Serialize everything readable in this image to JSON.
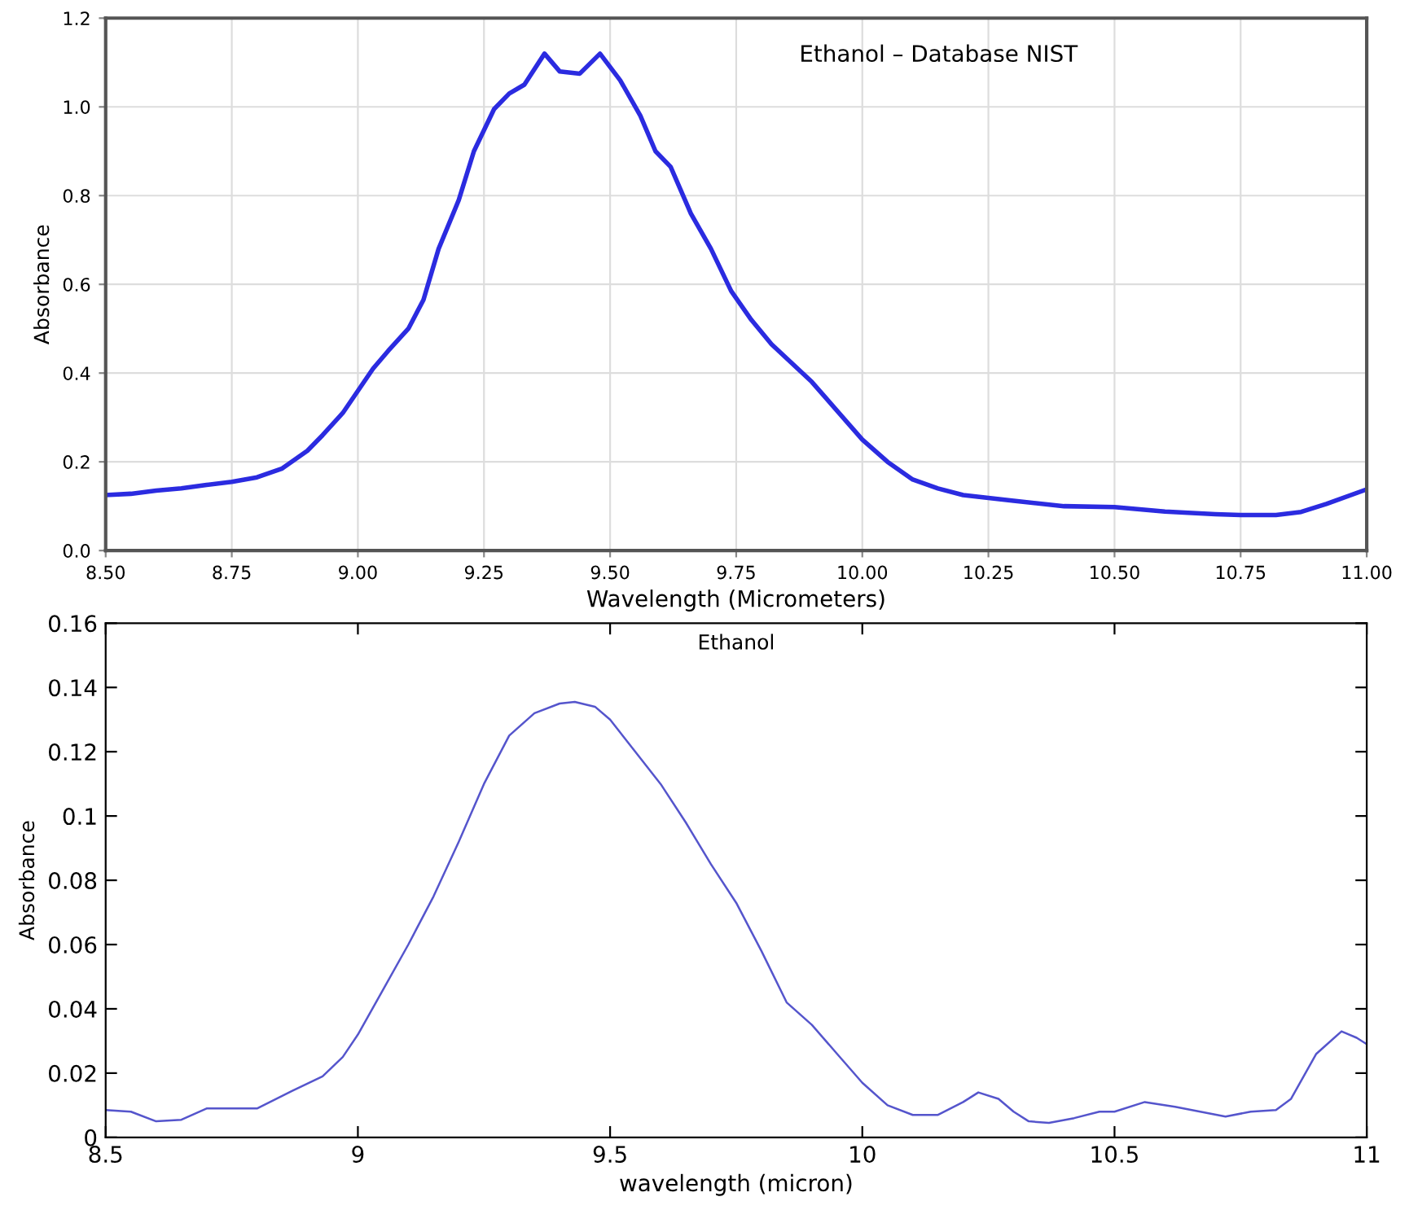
{
  "chart_data": [
    {
      "type": "line",
      "title": "Ethanol – Database NIST",
      "xlabel": "Wavelength (Micrometers)",
      "ylabel": "Absorbance",
      "series": [
        {
          "color": "#2b2be0",
          "x": [
            8.5,
            8.55,
            8.6,
            8.65,
            8.7,
            8.75,
            8.8,
            8.85,
            8.9,
            8.93,
            8.97,
            9.0,
            9.03,
            9.06,
            9.1,
            9.13,
            9.16,
            9.2,
            9.23,
            9.27,
            9.3,
            9.33,
            9.37,
            9.4,
            9.44,
            9.48,
            9.52,
            9.56,
            9.59,
            9.62,
            9.66,
            9.7,
            9.74,
            9.78,
            9.82,
            9.9,
            10.0,
            10.05,
            10.1,
            10.15,
            10.2,
            10.3,
            10.4,
            10.5,
            10.6,
            10.7,
            10.75,
            10.82,
            10.87,
            10.92,
            11.0
          ],
          "values": [
            0.125,
            0.128,
            0.135,
            0.14,
            0.148,
            0.155,
            0.165,
            0.185,
            0.225,
            0.26,
            0.31,
            0.36,
            0.41,
            0.45,
            0.5,
            0.565,
            0.68,
            0.79,
            0.9,
            0.995,
            1.03,
            1.05,
            1.12,
            1.08,
            1.075,
            1.12,
            1.06,
            0.98,
            0.9,
            0.865,
            0.76,
            0.68,
            0.585,
            0.52,
            0.465,
            0.38,
            0.25,
            0.2,
            0.16,
            0.14,
            0.125,
            0.112,
            0.1,
            0.098,
            0.088,
            0.082,
            0.08,
            0.08,
            0.087,
            0.105,
            0.138
          ]
        }
      ],
      "xlim": [
        8.5,
        11.0
      ],
      "ylim": [
        0.0,
        1.2
      ],
      "xticks": [
        {
          "value": 8.5,
          "label": "8.50"
        },
        {
          "value": 8.75,
          "label": "8.75"
        },
        {
          "value": 9.0,
          "label": "9.00"
        },
        {
          "value": 9.25,
          "label": "9.25"
        },
        {
          "value": 9.5,
          "label": "9.50"
        },
        {
          "value": 9.75,
          "label": "9.75"
        },
        {
          "value": 10.0,
          "label": "10.00"
        },
        {
          "value": 10.25,
          "label": "10.25"
        },
        {
          "value": 10.5,
          "label": "10.50"
        },
        {
          "value": 10.75,
          "label": "10.75"
        },
        {
          "value": 11.0,
          "label": "11.00"
        }
      ],
      "yticks": [
        {
          "value": 0,
          "label": "0.0"
        },
        {
          "value": 0.2,
          "label": "0.2"
        },
        {
          "value": 0.4,
          "label": "0.4"
        },
        {
          "value": 0.6,
          "label": "0.6"
        },
        {
          "value": 0.8,
          "label": "0.8"
        },
        {
          "value": 1.0,
          "label": "1.0"
        },
        {
          "value": 1.2,
          "label": "1.2"
        }
      ],
      "grid": true,
      "line_style": "solid"
    },
    {
      "type": "line",
      "title": "Ethanol",
      "xlabel": "wavelength (micron)",
      "ylabel": "Absorbance",
      "series": [
        {
          "color": "#5555cc",
          "x": [
            8.5,
            8.55,
            8.6,
            8.65,
            8.7,
            8.75,
            8.8,
            8.87,
            8.93,
            8.97,
            9.0,
            9.05,
            9.1,
            9.15,
            9.2,
            9.25,
            9.3,
            9.35,
            9.4,
            9.43,
            9.47,
            9.5,
            9.55,
            9.6,
            9.65,
            9.7,
            9.75,
            9.8,
            9.85,
            9.9,
            9.95,
            10.0,
            10.05,
            10.1,
            10.15,
            10.2,
            10.23,
            10.27,
            10.3,
            10.33,
            10.37,
            10.42,
            10.47,
            10.5,
            10.56,
            10.62,
            10.67,
            10.72,
            10.77,
            10.82,
            10.85,
            10.9,
            10.95,
            10.98,
            11.0
          ],
          "values": [
            0.0085,
            0.008,
            0.005,
            0.0055,
            0.009,
            0.009,
            0.009,
            0.0145,
            0.019,
            0.025,
            0.032,
            0.046,
            0.06,
            0.075,
            0.092,
            0.11,
            0.125,
            0.132,
            0.135,
            0.1355,
            0.134,
            0.13,
            0.12,
            0.11,
            0.098,
            0.085,
            0.073,
            0.058,
            0.042,
            0.035,
            0.026,
            0.017,
            0.01,
            0.007,
            0.007,
            0.011,
            0.014,
            0.012,
            0.008,
            0.005,
            0.0045,
            0.006,
            0.008,
            0.008,
            0.011,
            0.0095,
            0.008,
            0.0065,
            0.008,
            0.0085,
            0.012,
            0.026,
            0.033,
            0.031,
            0.029
          ]
        }
      ],
      "xlim": [
        8.5,
        11
      ],
      "ylim": [
        0,
        0.16
      ],
      "xticks": [
        8.5,
        9,
        9.5,
        10,
        10.5,
        11
      ],
      "yticks": [
        0,
        0.02,
        0.04,
        0.06,
        0.08,
        0.1,
        0.12,
        0.14,
        0.16
      ],
      "grid": false,
      "line_style": "solid"
    }
  ]
}
